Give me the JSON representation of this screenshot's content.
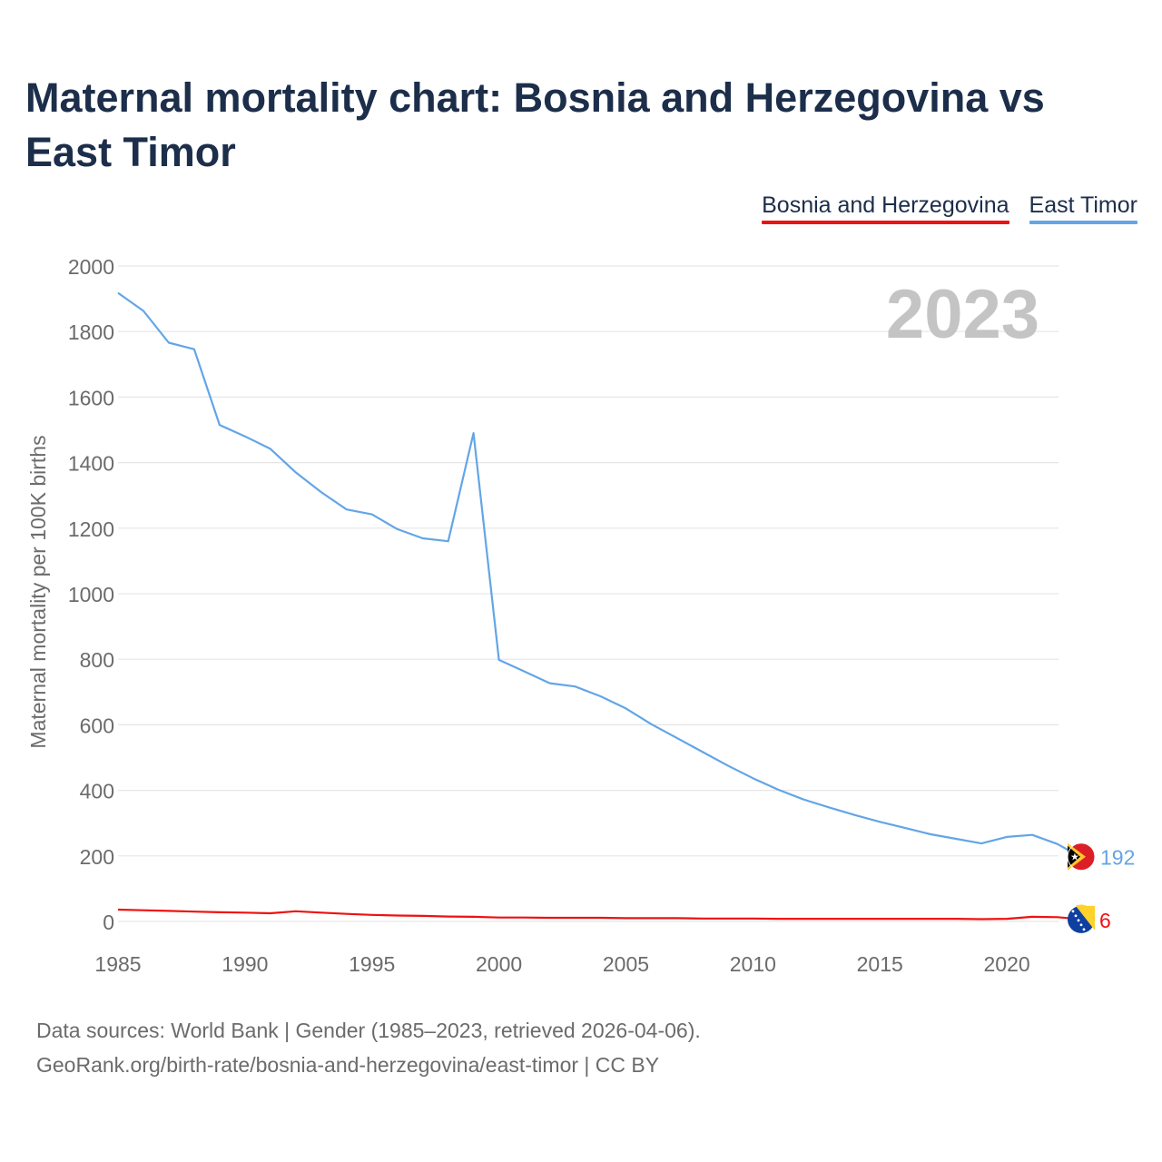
{
  "title": "Maternal mortality chart: Bosnia and Herzegovina vs East Timor",
  "legend": [
    {
      "label": "Bosnia and Herzegovina",
      "color": "#ee1111"
    },
    {
      "label": "East Timor",
      "color": "#63a5e6"
    }
  ],
  "year_badge": "2023",
  "footer": {
    "line1": "Data sources: World Bank | Gender (1985–2023, retrieved 2026-04-06).",
    "line2": "GeoRank.org/birth-rate/bosnia-and-herzegovina/east-timor | CC BY"
  },
  "chart_data": {
    "type": "line",
    "title": "Maternal mortality chart: Bosnia and Herzegovina vs East Timor",
    "xlabel": "",
    "ylabel": "Maternal mortality per 100K births",
    "xlim": [
      1985,
      2023
    ],
    "ylim": [
      0,
      2000
    ],
    "x_ticks": [
      1985,
      1990,
      1995,
      2000,
      2005,
      2010,
      2015,
      2020
    ],
    "y_ticks": [
      0,
      200,
      400,
      600,
      800,
      1000,
      1200,
      1400,
      1600,
      1800,
      2000
    ],
    "grid": true,
    "legend_position": "top-right",
    "x": [
      1985,
      1986,
      1987,
      1988,
      1989,
      1990,
      1991,
      1992,
      1993,
      1994,
      1995,
      1996,
      1997,
      1998,
      1999,
      2000,
      2001,
      2002,
      2003,
      2004,
      2005,
      2006,
      2007,
      2008,
      2009,
      2010,
      2011,
      2012,
      2013,
      2014,
      2015,
      2016,
      2017,
      2018,
      2019,
      2020,
      2021,
      2022,
      2023
    ],
    "series": [
      {
        "name": "Bosnia and Herzegovina",
        "color": "#ee1111",
        "end_label": "6",
        "flag_icon": "bosnia-flag-icon",
        "values": [
          36,
          34,
          32,
          30,
          28,
          27,
          25,
          31,
          27,
          23,
          20,
          18,
          17,
          15,
          14,
          12,
          12,
          11,
          11,
          11,
          10,
          10,
          10,
          9,
          9,
          9,
          8,
          8,
          8,
          8,
          8,
          8,
          8,
          8,
          7,
          8,
          14,
          13,
          6
        ]
      },
      {
        "name": "East Timor",
        "color": "#63a5e6",
        "end_label": "192",
        "flag_icon": "east-timor-flag-icon",
        "values": [
          1918,
          1863,
          1766,
          1746,
          1515,
          1480,
          1442,
          1370,
          1310,
          1257,
          1242,
          1197,
          1169,
          1160,
          1490,
          798,
          763,
          727,
          717,
          687,
          650,
          602,
          560,
          518,
          476,
          437,
          402,
          372,
          348,
          325,
          304,
          285,
          266,
          252,
          238,
          258,
          264,
          236,
          192
        ]
      }
    ]
  }
}
